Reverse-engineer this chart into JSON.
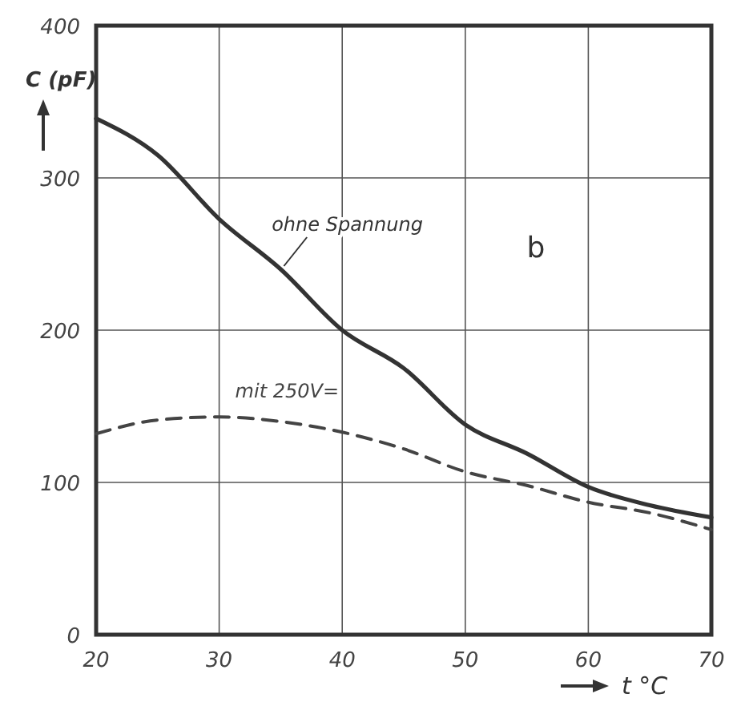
{
  "chart_data": {
    "type": "line",
    "xlabel": "t °C",
    "ylabel": "C (pF)",
    "annotations": [
      "b"
    ],
    "x": [
      20,
      25,
      30,
      35,
      40,
      45,
      50,
      55,
      60,
      65,
      70
    ],
    "series": [
      {
        "name": "ohne Spannung",
        "color": "#333333",
        "line_style": "solid",
        "values": [
          339,
          315,
          273,
          240,
          200,
          175,
          138,
          119,
          97,
          85,
          77
        ]
      },
      {
        "name": "mit 250V=",
        "color": "#444444",
        "line_style": "dashed",
        "values": [
          132,
          141,
          143,
          140,
          133,
          122,
          107,
          98,
          87,
          80,
          69
        ]
      }
    ],
    "xlim": [
      20,
      70
    ],
    "ylim": [
      0,
      400
    ],
    "xticks": [
      20,
      30,
      40,
      50,
      60,
      70
    ],
    "yticks": [
      0,
      100,
      200,
      300,
      400
    ],
    "grid": true
  }
}
